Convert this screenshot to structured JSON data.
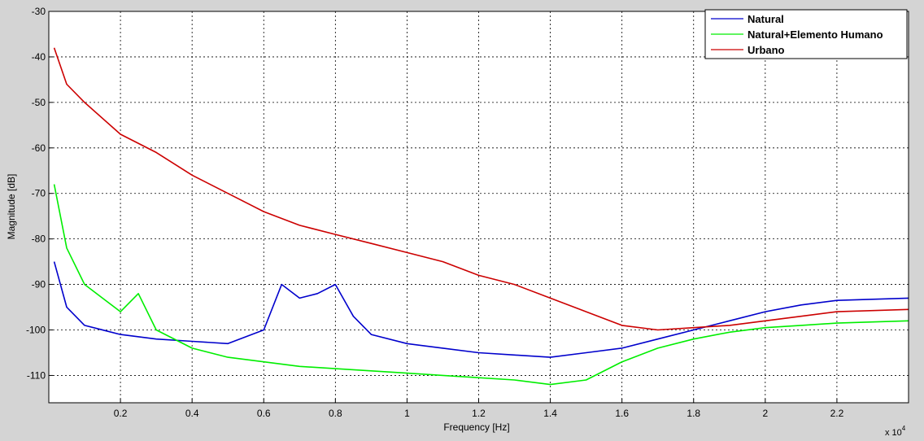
{
  "chart_data": {
    "type": "line",
    "title": "",
    "xlabel": "Frequency [Hz]",
    "ylabel": "Magnitude [dB]",
    "x_exponent_label": "x 10",
    "x_exponent_power": "4",
    "xlim": [
      0,
      24000
    ],
    "ylim": [
      -116,
      -30
    ],
    "x_ticks": [
      {
        "value": 2000,
        "label": "0.2"
      },
      {
        "value": 4000,
        "label": "0.4"
      },
      {
        "value": 6000,
        "label": "0.6"
      },
      {
        "value": 8000,
        "label": "0.8"
      },
      {
        "value": 10000,
        "label": "1"
      },
      {
        "value": 12000,
        "label": "1.2"
      },
      {
        "value": 14000,
        "label": "1.4"
      },
      {
        "value": 16000,
        "label": "1.6"
      },
      {
        "value": 18000,
        "label": "1.8"
      },
      {
        "value": 20000,
        "label": "2"
      },
      {
        "value": 22000,
        "label": "2.2"
      }
    ],
    "y_ticks": [
      {
        "value": -30,
        "label": "-30"
      },
      {
        "value": -40,
        "label": "-40"
      },
      {
        "value": -50,
        "label": "-50"
      },
      {
        "value": -60,
        "label": "-60"
      },
      {
        "value": -70,
        "label": "-70"
      },
      {
        "value": -80,
        "label": "-80"
      },
      {
        "value": -90,
        "label": "-90"
      },
      {
        "value": -100,
        "label": "-100"
      },
      {
        "value": -110,
        "label": "-110"
      }
    ],
    "grid": true,
    "legend_position": "top-right",
    "series": [
      {
        "name": "Natural",
        "color": "#0000cc",
        "x": [
          150,
          500,
          1000,
          2000,
          3000,
          4000,
          5000,
          6000,
          6500,
          7000,
          7500,
          8000,
          8500,
          9000,
          10000,
          11000,
          12000,
          13000,
          14000,
          15000,
          16000,
          17000,
          18000,
          19000,
          20000,
          21000,
          22000,
          24000
        ],
        "y": [
          -85,
          -95,
          -99,
          -101,
          -102,
          -102.5,
          -103,
          -100,
          -90,
          -93,
          -92,
          -90,
          -97,
          -101,
          -103,
          -104,
          -105,
          -105.5,
          -106,
          -105,
          -104,
          -102,
          -100,
          -98,
          -96,
          -94.5,
          -93.5,
          -93
        ]
      },
      {
        "name": "Natural+Elemento Humano",
        "color": "#00ee00",
        "x": [
          150,
          500,
          1000,
          2000,
          2500,
          3000,
          4000,
          5000,
          6000,
          7000,
          8000,
          9000,
          10000,
          11000,
          12000,
          13000,
          14000,
          15000,
          16000,
          17000,
          18000,
          19000,
          20000,
          21000,
          22000,
          24000
        ],
        "y": [
          -68,
          -82,
          -90,
          -96,
          -92,
          -100,
          -104,
          -106,
          -107,
          -108,
          -108.5,
          -109,
          -109.5,
          -110,
          -110.5,
          -111,
          -112,
          -111,
          -107,
          -104,
          -102,
          -100.5,
          -99.5,
          -99,
          -98.5,
          -98
        ]
      },
      {
        "name": "Urbano",
        "color": "#cc0000",
        "x": [
          150,
          500,
          1000,
          2000,
          3000,
          4000,
          5000,
          6000,
          7000,
          8000,
          9000,
          10000,
          11000,
          12000,
          13000,
          14000,
          15000,
          16000,
          17000,
          18000,
          19000,
          20000,
          21000,
          22000,
          24000
        ],
        "y": [
          -38,
          -46,
          -50,
          -57,
          -61,
          -66,
          -70,
          -74,
          -77,
          -79,
          -81,
          -83,
          -85,
          -88,
          -90,
          -93,
          -96,
          -99,
          -100,
          -99.5,
          -99,
          -98,
          -97,
          -96,
          -95.5
        ]
      }
    ]
  }
}
